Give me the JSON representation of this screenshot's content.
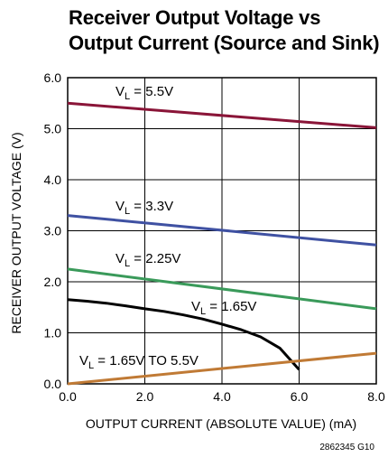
{
  "chart_data": {
    "type": "line",
    "title_lines": [
      "Receiver Output Voltage vs",
      "Output Current (Source and Sink)"
    ],
    "xlabel": "OUTPUT CURRENT (ABSOLUTE VALUE) (mA)",
    "ylabel": "RECEIVER OUTPUT VOLTAGE (V)",
    "xlim": [
      0,
      8
    ],
    "ylim": [
      0,
      6
    ],
    "x_ticks": [
      0,
      2,
      4,
      6,
      8
    ],
    "x_tick_labels": [
      "0.0",
      "2.0",
      "4.0",
      "6.0",
      "8.0"
    ],
    "y_ticks": [
      0,
      1,
      2,
      3,
      4,
      5,
      6
    ],
    "y_tick_labels": [
      "0.0",
      "1.0",
      "2.0",
      "3.0",
      "4.0",
      "5.0",
      "6.0"
    ],
    "grid": true,
    "series": [
      {
        "color": "#8a1538",
        "x": [
          0,
          8
        ],
        "y": [
          5.5,
          5.02
        ]
      },
      {
        "color": "#3f51a2",
        "x": [
          0,
          8
        ],
        "y": [
          3.3,
          2.72
        ]
      },
      {
        "color": "#3a9a5a",
        "x": [
          0,
          8
        ],
        "y": [
          2.25,
          1.47
        ]
      },
      {
        "color": "#000000",
        "x": [
          0,
          0.5,
          1,
          1.5,
          2,
          2.5,
          3,
          3.5,
          4,
          4.5,
          5,
          5.5,
          6
        ],
        "y": [
          1.65,
          1.62,
          1.58,
          1.53,
          1.47,
          1.42,
          1.35,
          1.27,
          1.17,
          1.06,
          0.92,
          0.7,
          0.28
        ]
      },
      {
        "color": "#c07a35",
        "x": [
          0,
          8
        ],
        "y": [
          0,
          0.6
        ]
      }
    ],
    "annotations": [
      {
        "main": "V",
        "sub": "L",
        "rest": " = 5.5V"
      },
      {
        "main": "V",
        "sub": "L",
        "rest": " = 3.3V"
      },
      {
        "main": "V",
        "sub": "L",
        "rest": " = 2.25V"
      },
      {
        "main": "V",
        "sub": "L",
        "rest": " = 1.65V"
      },
      {
        "main": "V",
        "sub": "L",
        "rest": " = 1.65V TO 5.5V"
      }
    ]
  },
  "figure_id": "2862345 G10"
}
